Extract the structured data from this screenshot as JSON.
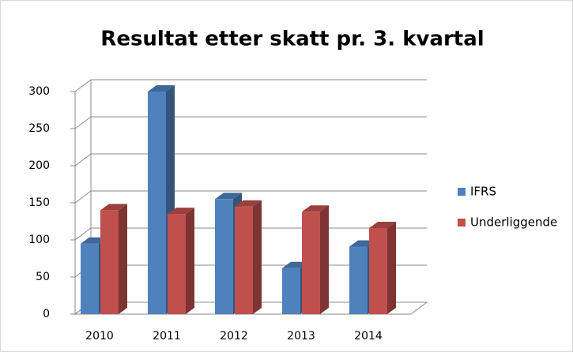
{
  "chart_data": {
    "type": "bar3d",
    "title": "Resultat etter skatt pr. 3. kvartal",
    "categories": [
      "2010",
      "2011",
      "2012",
      "2013",
      "2014"
    ],
    "series": [
      {
        "name": "IFRS",
        "color": "#4f81bd",
        "values": [
          95,
          300,
          155,
          62,
          91
        ]
      },
      {
        "name": "Underliggende",
        "color": "#c0504d",
        "values": [
          140,
          135,
          145,
          138,
          116
        ]
      }
    ],
    "ylim": [
      0,
      300
    ],
    "yticks": [
      0,
      50,
      100,
      150,
      200,
      250,
      300
    ],
    "grid": true,
    "legend": "right"
  }
}
